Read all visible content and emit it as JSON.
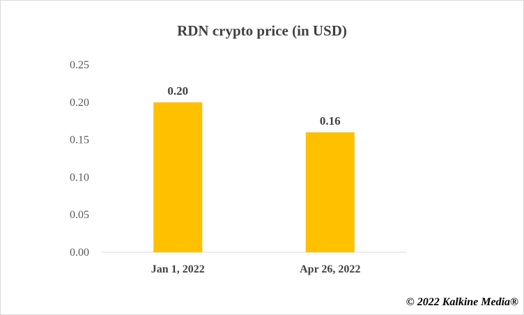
{
  "chart_data": {
    "type": "bar",
    "title": "RDN crypto price (in USD)",
    "categories": [
      "Jan 1, 2022",
      "Apr 26, 2022"
    ],
    "values": [
      0.2,
      0.16
    ],
    "data_labels": [
      "0.20",
      "0.16"
    ],
    "yticks": [
      "0.00",
      "0.05",
      "0.10",
      "0.15",
      "0.20",
      "0.25"
    ],
    "ylim": [
      0,
      0.25
    ],
    "xlabel": "",
    "ylabel": "",
    "grid": false,
    "bar_color": "#FFC000"
  },
  "credit": "© 2022 Kalkine Media®"
}
